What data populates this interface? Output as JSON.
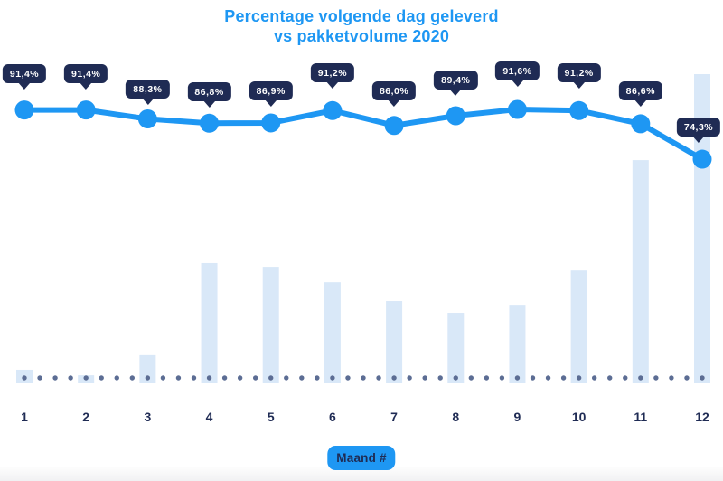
{
  "title": {
    "line1": "Percentage volgende dag geleverd",
    "line2": "vs pakketvolume 2020"
  },
  "x_axis": {
    "label_badge": "Maand #",
    "ticks": [
      "1",
      "2",
      "3",
      "4",
      "5",
      "6",
      "7",
      "8",
      "9",
      "10",
      "11",
      "12"
    ]
  },
  "colors": {
    "accent_blue": "#1E97F3",
    "navy": "#1F2B54",
    "bar_fill": "#D9E8F8",
    "baseline_dot": "#5C6D94",
    "tooltip_text": "#FFFFFF",
    "background": "#FFFFFF"
  },
  "chart_data": {
    "type": "combo",
    "title": "Percentage volgende dag geleverd vs pakketvolume 2020",
    "xlabel": "Maand #",
    "categories": [
      "1",
      "2",
      "3",
      "4",
      "5",
      "6",
      "7",
      "8",
      "9",
      "10",
      "11",
      "12"
    ],
    "series": [
      {
        "name": "Percentage volgende dag geleverd",
        "type": "line",
        "unit": "%",
        "values": [
          91.4,
          91.4,
          88.3,
          86.8,
          86.9,
          91.2,
          86.0,
          89.4,
          91.6,
          91.2,
          86.6,
          74.3
        ],
        "labels": [
          "91,4%",
          "91,4%",
          "88,3%",
          "86,8%",
          "86,9%",
          "91,2%",
          "86,0%",
          "89,4%",
          "91,6%",
          "91,2%",
          "86,6%",
          "74,3%"
        ]
      },
      {
        "name": "Pakketvolume",
        "type": "bar",
        "unit": "relative volume (max month = 100)",
        "values": [
          4.4,
          2.6,
          9.1,
          38.9,
          37.7,
          32.7,
          26.6,
          22.8,
          25.4,
          36.5,
          72.2,
          100
        ]
      }
    ],
    "legend": "none",
    "grid": "off",
    "y_axis": "hidden (values shown as data labels on line; bars unscaled volume)"
  }
}
